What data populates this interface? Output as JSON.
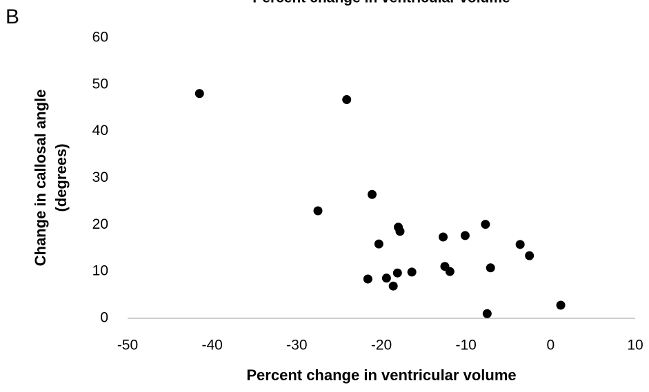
{
  "chart_data": {
    "type": "scatter",
    "panel_label": "B",
    "title": "Percent change in ventricular volume",
    "xlabel": "Percent change in ventricular volume",
    "ylabel": [
      "Change in callosal angle",
      "(degrees)"
    ],
    "x": [
      -41.5,
      -24.1,
      -27.5,
      -21.1,
      -18.0,
      -17.8,
      -20.3,
      -21.6,
      -19.4,
      -18.1,
      -18.6,
      -16.4,
      -12.7,
      -12.5,
      -11.9,
      -10.1,
      -7.7,
      -7.1,
      -7.5,
      -3.6,
      -2.5,
      1.2
    ],
    "values": [
      48.1,
      46.8,
      23.0,
      26.5,
      19.5,
      18.6,
      15.9,
      8.4,
      8.6,
      9.7,
      6.9,
      9.9,
      17.4,
      11.1,
      10.0,
      17.7,
      20.1,
      10.8,
      1.0,
      15.8,
      13.4,
      2.8
    ],
    "color": "#000000",
    "xlim": [
      -50,
      10
    ],
    "xticks": [
      -50,
      -40,
      -30,
      -20,
      -10,
      0,
      10
    ],
    "ylim": [
      0,
      60
    ],
    "yticks": [
      0,
      10,
      20,
      30,
      40,
      50,
      60
    ],
    "grid": false
  }
}
